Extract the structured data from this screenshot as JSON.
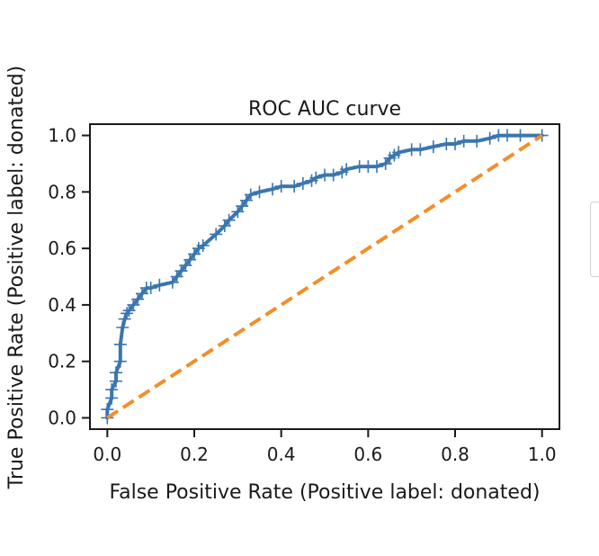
{
  "chart_data": {
    "type": "line",
    "title": "ROC AUC curve",
    "xlabel": "False Positive Rate (Positive label: donated)",
    "ylabel": "True Positive Rate (Positive label: donated)",
    "xlim": [
      -0.04,
      1.04
    ],
    "ylim": [
      -0.04,
      1.04
    ],
    "xticks": [
      "0.0",
      "0.2",
      "0.4",
      "0.6",
      "0.8",
      "1.0"
    ],
    "yticks": [
      "0.0",
      "0.2",
      "0.4",
      "0.6",
      "0.8",
      "1.0"
    ],
    "grid": false,
    "series": [
      {
        "name": "",
        "color": "#3a76af",
        "marker": "+",
        "x": [
          0.0,
          0.0,
          0.01,
          0.01,
          0.02,
          0.02,
          0.03,
          0.03,
          0.035,
          0.04,
          0.045,
          0.05,
          0.06,
          0.07,
          0.08,
          0.09,
          0.1,
          0.12,
          0.15,
          0.16,
          0.17,
          0.18,
          0.19,
          0.2,
          0.21,
          0.22,
          0.25,
          0.27,
          0.28,
          0.3,
          0.31,
          0.32,
          0.33,
          0.35,
          0.38,
          0.4,
          0.43,
          0.45,
          0.47,
          0.48,
          0.5,
          0.52,
          0.54,
          0.55,
          0.58,
          0.6,
          0.62,
          0.64,
          0.65,
          0.66,
          0.67,
          0.7,
          0.72,
          0.75,
          0.78,
          0.8,
          0.82,
          0.85,
          0.88,
          0.9,
          0.92,
          0.95,
          1.0
        ],
        "y": [
          0.0,
          0.03,
          0.07,
          0.1,
          0.13,
          0.16,
          0.2,
          0.26,
          0.32,
          0.35,
          0.37,
          0.38,
          0.4,
          0.42,
          0.44,
          0.46,
          0.46,
          0.47,
          0.48,
          0.5,
          0.52,
          0.54,
          0.56,
          0.58,
          0.6,
          0.61,
          0.65,
          0.68,
          0.7,
          0.73,
          0.75,
          0.77,
          0.79,
          0.8,
          0.81,
          0.82,
          0.82,
          0.83,
          0.84,
          0.85,
          0.86,
          0.86,
          0.87,
          0.88,
          0.89,
          0.89,
          0.89,
          0.9,
          0.92,
          0.93,
          0.94,
          0.95,
          0.95,
          0.96,
          0.97,
          0.97,
          0.98,
          0.98,
          0.99,
          1.0,
          1.0,
          1.0,
          1.0
        ]
      },
      {
        "name": "",
        "color": "#f28e2b",
        "style": "dashed",
        "x": [
          0,
          1
        ],
        "y": [
          0,
          1
        ]
      }
    ]
  }
}
